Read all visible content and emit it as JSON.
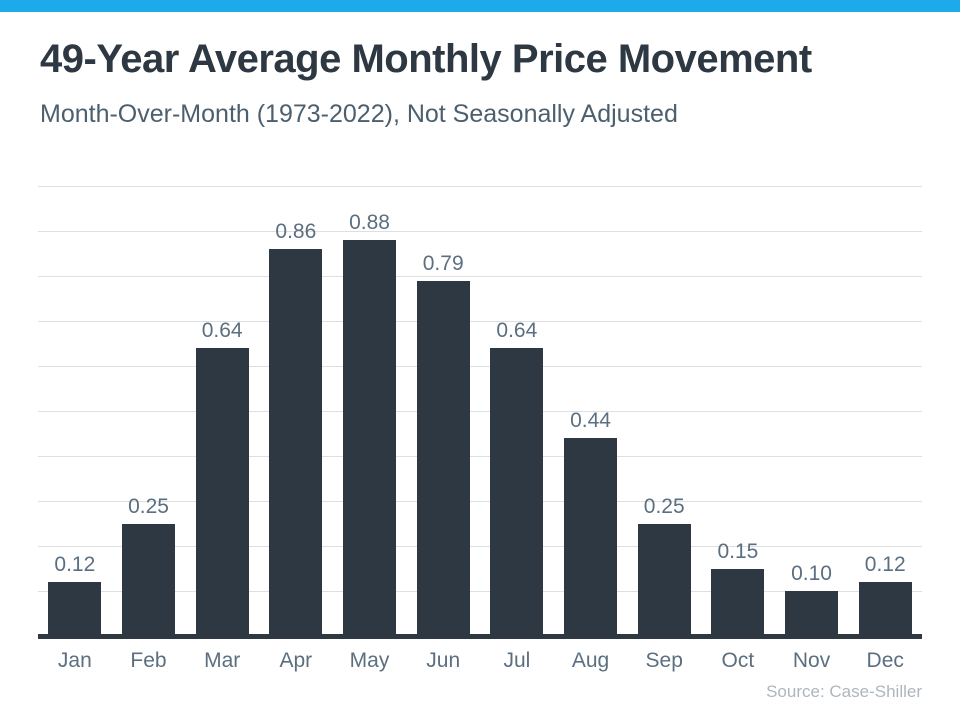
{
  "page": {
    "title": "49-Year Average Monthly Price Movement",
    "subtitle": "Month-Over-Month (1973-2022), Not Seasonally Adjusted",
    "source": "Source: Case-Shiller",
    "colors": {
      "accent": "#1CAAEB",
      "bar": "#2D3843",
      "label": "#5C6F80",
      "grid": "#DDDFE1"
    }
  },
  "chart_data": {
    "type": "bar",
    "title": "49-Year Average Monthly Price Movement",
    "subtitle": "Month-Over-Month (1973-2022), Not Seasonally Adjusted",
    "categories": [
      "Jan",
      "Feb",
      "Mar",
      "Apr",
      "May",
      "Jun",
      "Jul",
      "Aug",
      "Sep",
      "Oct",
      "Nov",
      "Dec"
    ],
    "values": [
      0.12,
      0.25,
      0.64,
      0.86,
      0.88,
      0.79,
      0.64,
      0.44,
      0.25,
      0.15,
      0.1,
      0.12
    ],
    "value_labels": [
      "0.12",
      "0.25",
      "0.64",
      "0.86",
      "0.88",
      "0.79",
      "0.64",
      "0.44",
      "0.25",
      "0.15",
      "0.10",
      "0.12"
    ],
    "xlabel": "",
    "ylabel": "",
    "ylim": [
      0,
      1.0
    ],
    "grid": true,
    "gridline_step": 0.1,
    "legend": false,
    "annotation": "Source: Case-Shiller"
  }
}
